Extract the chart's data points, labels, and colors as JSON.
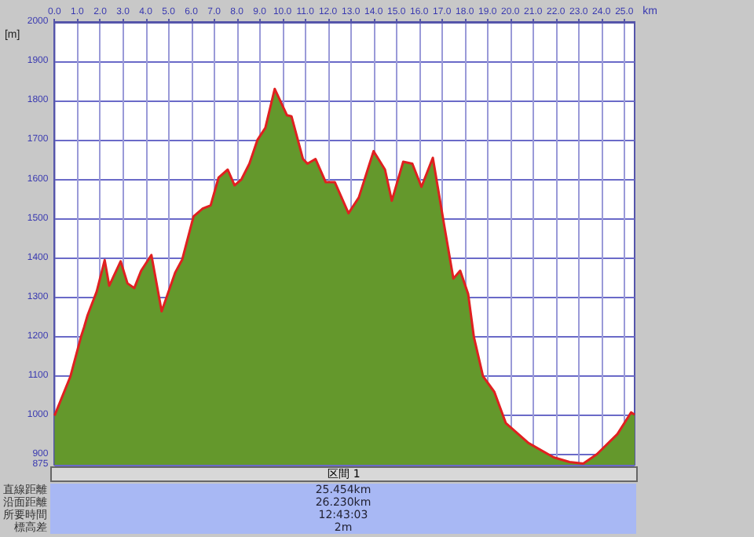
{
  "chart_data": {
    "type": "area",
    "xlabel": "km",
    "ylabel": "[m]",
    "x": [
      0,
      0.7,
      1.16,
      1.3,
      1.45,
      1.85,
      2.2,
      2.4,
      2.9,
      3.2,
      3.5,
      3.8,
      4.25,
      4.7,
      5.3,
      5.6,
      6.1,
      6.5,
      6.85,
      7.2,
      7.6,
      7.9,
      8.2,
      8.55,
      8.9,
      9.25,
      9.66,
      10.2,
      10.4,
      10.9,
      11.1,
      11.45,
      11.9,
      12.3,
      12.9,
      13.35,
      14.0,
      14.5,
      14.8,
      15.3,
      15.7,
      16.1,
      16.6,
      17.1,
      17.5,
      17.8,
      18.15,
      18.4,
      18.8,
      19.3,
      19.8,
      20.8,
      21.9,
      22.6,
      23.2,
      23.8,
      24.7,
      25.3,
      25.454
    ],
    "series": [
      {
        "color": "#64982c",
        "values": [
          1000,
          1100,
          1200,
          1225,
          1255,
          1315,
          1395,
          1330,
          1392,
          1336,
          1324,
          1368,
          1408,
          1265,
          1364,
          1396,
          1506,
          1526,
          1534,
          1605,
          1625,
          1585,
          1600,
          1640,
          1700,
          1731,
          1830,
          1763,
          1760,
          1652,
          1640,
          1652,
          1593,
          1593,
          1514,
          1554,
          1672,
          1625,
          1546,
          1645,
          1640,
          1581,
          1655,
          1483,
          1348,
          1368,
          1309,
          1200,
          1100,
          1060,
          981,
          930,
          894,
          882,
          878,
          902,
          953,
          1008,
          1002
        ]
      }
    ],
    "xlim": [
      0,
      25.454
    ],
    "xticks": [
      {
        "value": 0,
        "label": "0.0"
      },
      {
        "value": 1,
        "label": "1.0"
      },
      {
        "value": 2,
        "label": "2.0"
      },
      {
        "value": 3,
        "label": "3.0"
      },
      {
        "value": 4,
        "label": "4.0"
      },
      {
        "value": 5,
        "label": "5.0"
      },
      {
        "value": 6,
        "label": "6.0"
      },
      {
        "value": 7,
        "label": "7.0"
      },
      {
        "value": 8,
        "label": "8.0"
      },
      {
        "value": 9,
        "label": "9.0"
      },
      {
        "value": 10,
        "label": "10.0"
      },
      {
        "value": 11,
        "label": "11.0"
      },
      {
        "value": 12,
        "label": "12.0"
      },
      {
        "value": 13,
        "label": "13.0"
      },
      {
        "value": 14,
        "label": "14.0"
      },
      {
        "value": 15,
        "label": "15.0"
      },
      {
        "value": 16,
        "label": "16.0"
      },
      {
        "value": 17,
        "label": "17.0"
      },
      {
        "value": 18,
        "label": "18.0"
      },
      {
        "value": 19,
        "label": "19.0"
      },
      {
        "value": 20,
        "label": "20.0"
      },
      {
        "value": 21,
        "label": "21.0"
      },
      {
        "value": 22,
        "label": "22.0"
      },
      {
        "value": 23,
        "label": "23.0"
      },
      {
        "value": 24,
        "label": "24.0"
      },
      {
        "value": 25,
        "label": "25.0"
      }
    ],
    "ylim": [
      875,
      2000
    ],
    "yticks": [
      875,
      900,
      1000,
      1100,
      1200,
      1300,
      1400,
      1500,
      1600,
      1700,
      1800,
      1900,
      2000
    ],
    "grid": true,
    "annotations": [
      "区間 1",
      "直線距離",
      "25.454km",
      "沿面距離",
      "26.230km",
      "所要時間",
      "12:43:03",
      "標高差",
      "2m"
    ]
  }
}
